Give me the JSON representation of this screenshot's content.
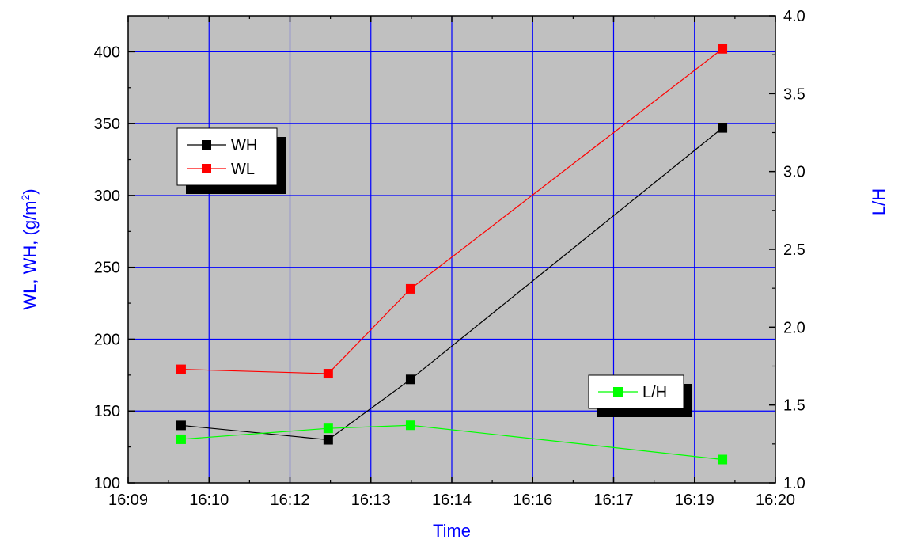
{
  "chart_data": {
    "type": "line",
    "xlabel": "Time",
    "ylabel_left": "WL, WH, (g/m",
    "ylabel_left_sup": "2",
    "ylabel_left_end": ")",
    "ylabel_right": "L/H",
    "x_ticks": [
      "16:09",
      "16:10",
      "16:12",
      "16:13",
      "16:14",
      "16:16",
      "16:17",
      "16:19",
      "16:20"
    ],
    "xlim_minutes": [
      549,
      560
    ],
    "y_left_ticks": [
      "100",
      "150",
      "200",
      "250",
      "300",
      "350",
      "400"
    ],
    "ylim_left": [
      100,
      425
    ],
    "y_right_ticks": [
      "1.0",
      "1.5",
      "2.0",
      "2.5",
      "3.0",
      "3.5",
      "4.0"
    ],
    "ylim_right": [
      1.0,
      4.0
    ],
    "grid": true,
    "series": [
      {
        "name": "WH",
        "axis": "left",
        "color": "#000000",
        "x_minutes": [
          549.9,
          552.4,
          553.8,
          559.1
        ],
        "values": [
          140,
          130,
          172,
          347
        ]
      },
      {
        "name": "WL",
        "axis": "left",
        "color": "#ff0000",
        "x_minutes": [
          549.9,
          552.4,
          553.8,
          559.1
        ],
        "values": [
          179,
          176,
          235,
          402
        ]
      },
      {
        "name": "L/H",
        "axis": "right",
        "color": "#00ff00",
        "x_minutes": [
          549.9,
          552.4,
          553.8,
          559.1
        ],
        "values": [
          1.28,
          1.35,
          1.37,
          1.15
        ]
      }
    ],
    "legend_left": [
      "WH",
      "WL"
    ],
    "legend_right": [
      "L/H"
    ],
    "colors": {
      "plot_bg": "#c0c0c0",
      "grid": "#0000ff",
      "axis_title": "#0000ff"
    }
  }
}
